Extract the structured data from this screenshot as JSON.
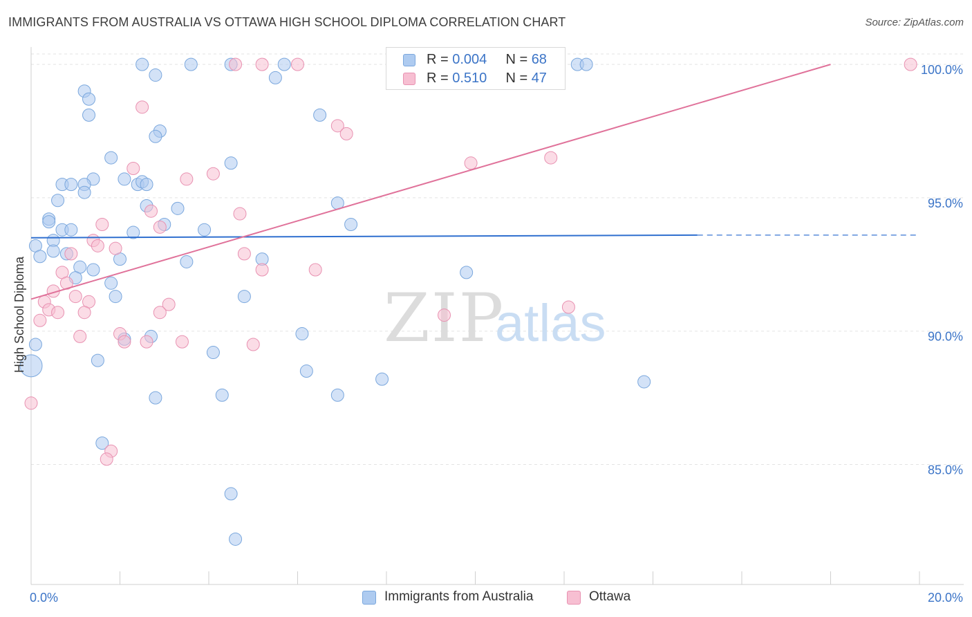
{
  "title": "IMMIGRANTS FROM AUSTRALIA VS OTTAWA HIGH SCHOOL DIPLOMA CORRELATION CHART",
  "source": "Source: ZipAtlas.com",
  "watermark": {
    "zip": "ZIP",
    "atlas": "atlas"
  },
  "legend_stats": [
    {
      "r_label": "R = ",
      "r_value": "0.004",
      "n_label": "N = ",
      "n_value": "68"
    },
    {
      "r_label": "R = ",
      "r_value": "0.510",
      "n_label": "N = ",
      "n_value": "47"
    }
  ],
  "colors": {
    "blue_fill": "#aecbf0",
    "blue_stroke": "#7aa7dd",
    "blue_line": "#2f6fcf",
    "pink_fill": "#f7bfd2",
    "pink_stroke": "#e891b1",
    "pink_line": "#e0729a",
    "axis_label": "#3b74c7",
    "grid": "#e3e3e3"
  },
  "chart_data": {
    "type": "scatter",
    "title": "IMMIGRANTS FROM AUSTRALIA VS OTTAWA HIGH SCHOOL DIPLOMA CORRELATION CHART",
    "xlabel": "",
    "ylabel": "High School Diploma",
    "xlim": [
      0,
      20
    ],
    "ylim": [
      80.5,
      100.6
    ],
    "x_tick_labels": [
      {
        "value": 0,
        "label": "0.0%"
      },
      {
        "value": 20,
        "label": "20.0%"
      }
    ],
    "y_tick_labels": [
      {
        "value": 100,
        "label": "100.0%"
      },
      {
        "value": 95,
        "label": "95.0%"
      },
      {
        "value": 90,
        "label": "90.0%"
      },
      {
        "value": 85,
        "label": "85.0%"
      }
    ],
    "grid": true,
    "legend_position": "bottom",
    "series": [
      {
        "name": "Immigrants from Australia",
        "trend": {
          "x0": 0,
          "y0": 93.5,
          "x1": 15.0,
          "y1": 93.6,
          "dashed_to_x": 20,
          "dashed_y": 93.6
        },
        "points": [
          [
            2.5,
            100
          ],
          [
            3.6,
            100
          ],
          [
            4.5,
            100
          ],
          [
            5.7,
            100
          ],
          [
            12.3,
            100
          ],
          [
            12.5,
            100
          ],
          [
            2.8,
            99.6
          ],
          [
            5.5,
            99.5
          ],
          [
            1.2,
            99.0
          ],
          [
            1.3,
            98.7
          ],
          [
            1.3,
            98.1
          ],
          [
            6.5,
            98.1
          ],
          [
            2.9,
            97.5
          ],
          [
            2.8,
            97.3
          ],
          [
            1.8,
            96.5
          ],
          [
            4.5,
            96.3
          ],
          [
            1.4,
            95.7
          ],
          [
            2.1,
            95.7
          ],
          [
            0.7,
            95.5
          ],
          [
            1.2,
            95.5
          ],
          [
            0.9,
            95.5
          ],
          [
            2.4,
            95.5
          ],
          [
            2.5,
            95.6
          ],
          [
            2.6,
            95.5
          ],
          [
            1.2,
            95.2
          ],
          [
            0.6,
            94.9
          ],
          [
            6.9,
            94.8
          ],
          [
            2.6,
            94.7
          ],
          [
            3.3,
            94.6
          ],
          [
            0.4,
            94.2
          ],
          [
            0.4,
            94.1
          ],
          [
            3.0,
            94.0
          ],
          [
            7.2,
            94.0
          ],
          [
            0.7,
            93.8
          ],
          [
            0.9,
            93.8
          ],
          [
            2.3,
            93.7
          ],
          [
            3.9,
            93.8
          ],
          [
            0.5,
            93.4
          ],
          [
            0.1,
            93.2
          ],
          [
            0.5,
            93.0
          ],
          [
            0.8,
            92.9
          ],
          [
            0.2,
            92.8
          ],
          [
            2.0,
            92.7
          ],
          [
            5.2,
            92.7
          ],
          [
            3.5,
            92.6
          ],
          [
            1.1,
            92.4
          ],
          [
            1.4,
            92.3
          ],
          [
            9.8,
            92.2
          ],
          [
            1.0,
            92.0
          ],
          [
            1.8,
            91.8
          ],
          [
            1.9,
            91.3
          ],
          [
            4.8,
            91.3
          ],
          [
            0.1,
            89.5
          ],
          [
            2.1,
            89.7
          ],
          [
            2.7,
            89.8
          ],
          [
            6.1,
            89.9
          ],
          [
            4.1,
            89.2
          ],
          [
            1.5,
            88.9
          ],
          [
            0.0,
            88.7
          ],
          [
            6.2,
            88.5
          ],
          [
            7.9,
            88.2
          ],
          [
            13.8,
            88.1
          ],
          [
            2.8,
            87.5
          ],
          [
            4.3,
            87.6
          ],
          [
            6.9,
            87.6
          ],
          [
            1.6,
            85.8
          ],
          [
            4.5,
            83.9
          ],
          [
            4.6,
            82.2
          ]
        ]
      },
      {
        "name": "Ottawa",
        "trend": {
          "x0": 0,
          "y0": 91.2,
          "x1": 18.0,
          "y1": 100.0
        },
        "points": [
          [
            4.6,
            100
          ],
          [
            5.2,
            100
          ],
          [
            6.0,
            100
          ],
          [
            8.5,
            100
          ],
          [
            19.8,
            100
          ],
          [
            2.5,
            98.4
          ],
          [
            6.9,
            97.7
          ],
          [
            7.1,
            97.4
          ],
          [
            11.7,
            96.5
          ],
          [
            9.9,
            96.3
          ],
          [
            2.3,
            96.1
          ],
          [
            4.1,
            95.9
          ],
          [
            3.5,
            95.7
          ],
          [
            4.7,
            94.4
          ],
          [
            2.7,
            94.5
          ],
          [
            1.6,
            94.0
          ],
          [
            2.9,
            93.9
          ],
          [
            1.4,
            93.4
          ],
          [
            1.5,
            93.2
          ],
          [
            1.9,
            93.1
          ],
          [
            0.9,
            92.9
          ],
          [
            4.8,
            92.9
          ],
          [
            0.7,
            92.2
          ],
          [
            5.2,
            92.3
          ],
          [
            6.4,
            92.3
          ],
          [
            0.8,
            91.8
          ],
          [
            0.5,
            91.5
          ],
          [
            1.0,
            91.3
          ],
          [
            0.3,
            91.1
          ],
          [
            1.3,
            91.1
          ],
          [
            3.1,
            91.0
          ],
          [
            12.1,
            90.9
          ],
          [
            0.4,
            90.8
          ],
          [
            0.6,
            90.7
          ],
          [
            1.2,
            90.7
          ],
          [
            2.9,
            90.7
          ],
          [
            9.3,
            90.6
          ],
          [
            0.2,
            90.4
          ],
          [
            2.0,
            89.9
          ],
          [
            1.1,
            89.8
          ],
          [
            2.1,
            89.6
          ],
          [
            2.6,
            89.6
          ],
          [
            3.4,
            89.6
          ],
          [
            5.0,
            89.5
          ],
          [
            0.0,
            87.3
          ],
          [
            1.8,
            85.5
          ],
          [
            1.7,
            85.2
          ]
        ]
      }
    ]
  }
}
